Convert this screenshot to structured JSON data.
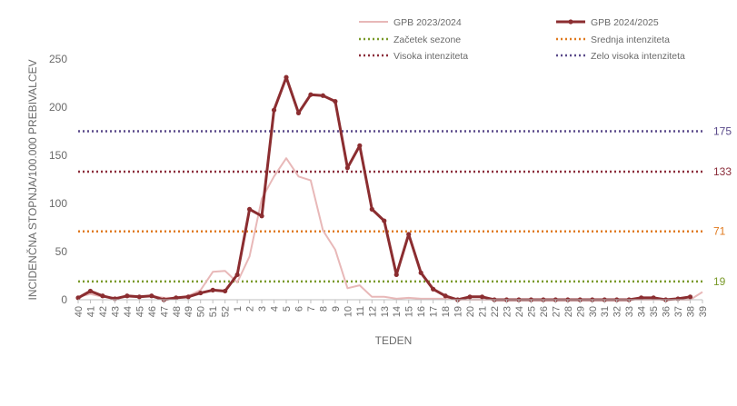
{
  "chart_data": {
    "type": "line",
    "xlabel": "TEDEN",
    "ylabel": "INCIDENČNA  STOPNJA/100.000  PREBIVALCEV",
    "ylim": [
      0,
      250
    ],
    "yticks": [
      "0",
      "50",
      "100",
      "150",
      "200",
      "250"
    ],
    "categories": [
      "40",
      "41",
      "42",
      "43",
      "44",
      "45",
      "46",
      "47",
      "48",
      "49",
      "50",
      "51",
      "52",
      "1",
      "2",
      "3",
      "4",
      "5",
      "6",
      "7",
      "8",
      "9",
      "10",
      "11",
      "12",
      "13",
      "14",
      "15",
      "16",
      "17",
      "18",
      "19",
      "20",
      "21",
      "22",
      "23",
      "24",
      "25",
      "26",
      "27",
      "28",
      "29",
      "30",
      "31",
      "32",
      "33",
      "34",
      "35",
      "36",
      "37",
      "38",
      "39"
    ],
    "series": [
      {
        "name": "GPB 2023/2024",
        "color": "#e8b8b8",
        "markers": false,
        "values": [
          3,
          6,
          3,
          2,
          3,
          3,
          4,
          2,
          2,
          4,
          10,
          29,
          30,
          18,
          45,
          105,
          128,
          147,
          128,
          124,
          72,
          52,
          12,
          15,
          3,
          3,
          1,
          2,
          1,
          1,
          1,
          0,
          0,
          0,
          0,
          0,
          0,
          0,
          0,
          0,
          0,
          0,
          0,
          0,
          0,
          0,
          0,
          0,
          0,
          0,
          0,
          8
        ]
      },
      {
        "name": "GPB 2024/2025",
        "color": "#8b2d30",
        "markers": true,
        "values": [
          2,
          9,
          4,
          1,
          4,
          3,
          4,
          0,
          2,
          3,
          7,
          10,
          9,
          26,
          94,
          87,
          197,
          231,
          194,
          213,
          212,
          206,
          137,
          160,
          94,
          82,
          26,
          68,
          28,
          11,
          4,
          0,
          3,
          3,
          0,
          0,
          0,
          0,
          0,
          0,
          0,
          0,
          0,
          0,
          0,
          0,
          2,
          2,
          0,
          1,
          3,
          null
        ]
      }
    ],
    "thresholds": [
      {
        "name": "Začetek sezone",
        "value": 19,
        "label": "19",
        "color": "#7a9a2a"
      },
      {
        "name": "Srednja intenziteta",
        "value": 71,
        "label": "71",
        "color": "#e07a1f"
      },
      {
        "name": "Visoka intenziteta",
        "value": 133,
        "label": "133",
        "color": "#8b2d3a"
      },
      {
        "name": "Zelo visoka intenziteta",
        "value": 175,
        "label": "175",
        "color": "#5a4a8a"
      }
    ],
    "legend": [
      {
        "label": "GPB 2023/2024",
        "kind": "line",
        "color": "#e8b8b8"
      },
      {
        "label": "GPB 2024/2025",
        "kind": "line-marker",
        "color": "#8b2d30"
      },
      {
        "label": "Začetek sezone",
        "kind": "dotted",
        "color": "#7a9a2a"
      },
      {
        "label": "Srednja intenziteta",
        "kind": "dotted",
        "color": "#e07a1f"
      },
      {
        "label": "Visoka intenziteta",
        "kind": "dotted",
        "color": "#8b2d3a"
      },
      {
        "label": "Zelo visoka intenziteta",
        "kind": "dotted",
        "color": "#5a4a8a"
      }
    ],
    "legend_position": "top-right",
    "grid": false
  }
}
